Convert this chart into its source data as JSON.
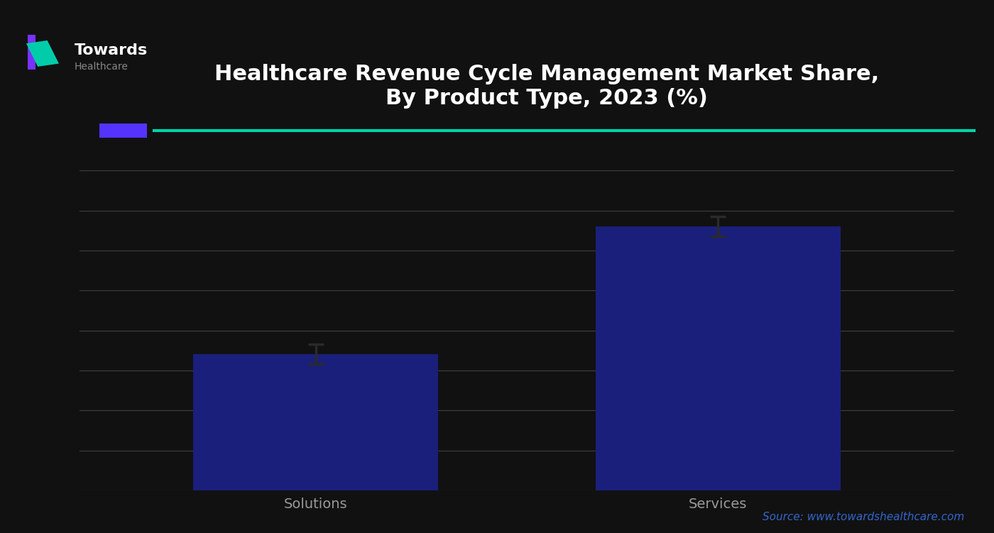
{
  "title_line1": "Healthcare Revenue Cycle Management Market Share,",
  "title_line2": "By Product Type, 2023 (%)",
  "categories": [
    "Solutions",
    "Services"
  ],
  "values": [
    34.0,
    66.0
  ],
  "bar_color": "#1a1f7c",
  "error_bar_color": "#2a2a2a",
  "error_values": [
    2.5,
    2.5
  ],
  "background_color": "#111111",
  "plot_bg_color": "#111111",
  "grid_color": "#555555",
  "text_color": "#ffffff",
  "title_color": "#ffffff",
  "xlabel_color": "#999999",
  "teal_line_color": "#00d4aa",
  "purple_block_color": "#5533ff",
  "ylim": [
    0,
    80
  ],
  "yticks": [
    0,
    10,
    20,
    30,
    40,
    50,
    60,
    70,
    80
  ],
  "source_text": "Source: www.towardshealthcare.com",
  "source_color": "#3366cc",
  "bar_width": 0.28,
  "title_fontsize": 22,
  "tick_fontsize": 14,
  "source_fontsize": 11,
  "logo_text": "Towards",
  "logo_sub": "Healthcare",
  "bar_positions": [
    0.27,
    0.73
  ]
}
